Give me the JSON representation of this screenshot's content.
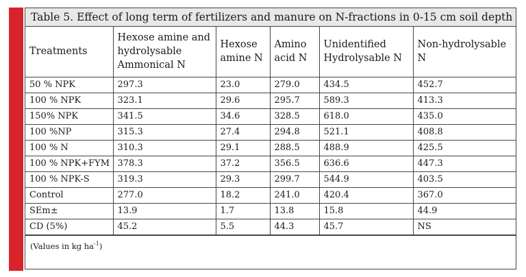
{
  "title": "Table 5. Effect of long term of fertilizers and manure on N-fractions in 0-15 cm soil depth",
  "headers": [
    "Treatments",
    "Hexose amine and hydrolysable Ammonical N",
    "Hexose amine N",
    "Amino acid N",
    "Unidentified Hydrolysable N",
    "Non-hydrolysable N"
  ],
  "rows": [
    [
      "50 % NPK",
      "297.3",
      "23.0",
      "279.0",
      "434.5",
      "452.7"
    ],
    [
      "100 % NPK",
      "323.1",
      "29.6",
      "295.7",
      "589.3",
      "413.3"
    ],
    [
      "150% NPK",
      "341.5",
      "34.6",
      "328.5",
      "618.0",
      "435.0"
    ],
    [
      "100 %NP",
      "315.3",
      "27.4",
      "294.8",
      "521.1",
      "408.8"
    ],
    [
      "100 % N",
      "310.3",
      "29.1",
      "288.5",
      "488.9",
      "425.5"
    ],
    [
      "100 % NPK+FYM",
      "378.3",
      "37.2",
      "356.5",
      "636.6",
      "447.3"
    ],
    [
      "100 % NPK-S",
      "319.3",
      "29.3",
      "299.7",
      "544.9",
      "403.5"
    ],
    [
      "Control",
      "277.0",
      "18.2",
      "241.0",
      "420.4",
      "367.0"
    ],
    [
      "SEm±",
      "13.9",
      "1.7",
      "13.8",
      "15.8",
      "44.9"
    ],
    [
      "CD (5%)",
      "45.2",
      "5.5",
      "44.3",
      "45.7",
      "NS"
    ]
  ],
  "note_prefix": "(Values in kg ha",
  "note_sup": "-1",
  "note_suffix": ")",
  "colors": {
    "accent": "#d8232a",
    "title_bg": "#e8e8e8",
    "border": "#444444"
  }
}
